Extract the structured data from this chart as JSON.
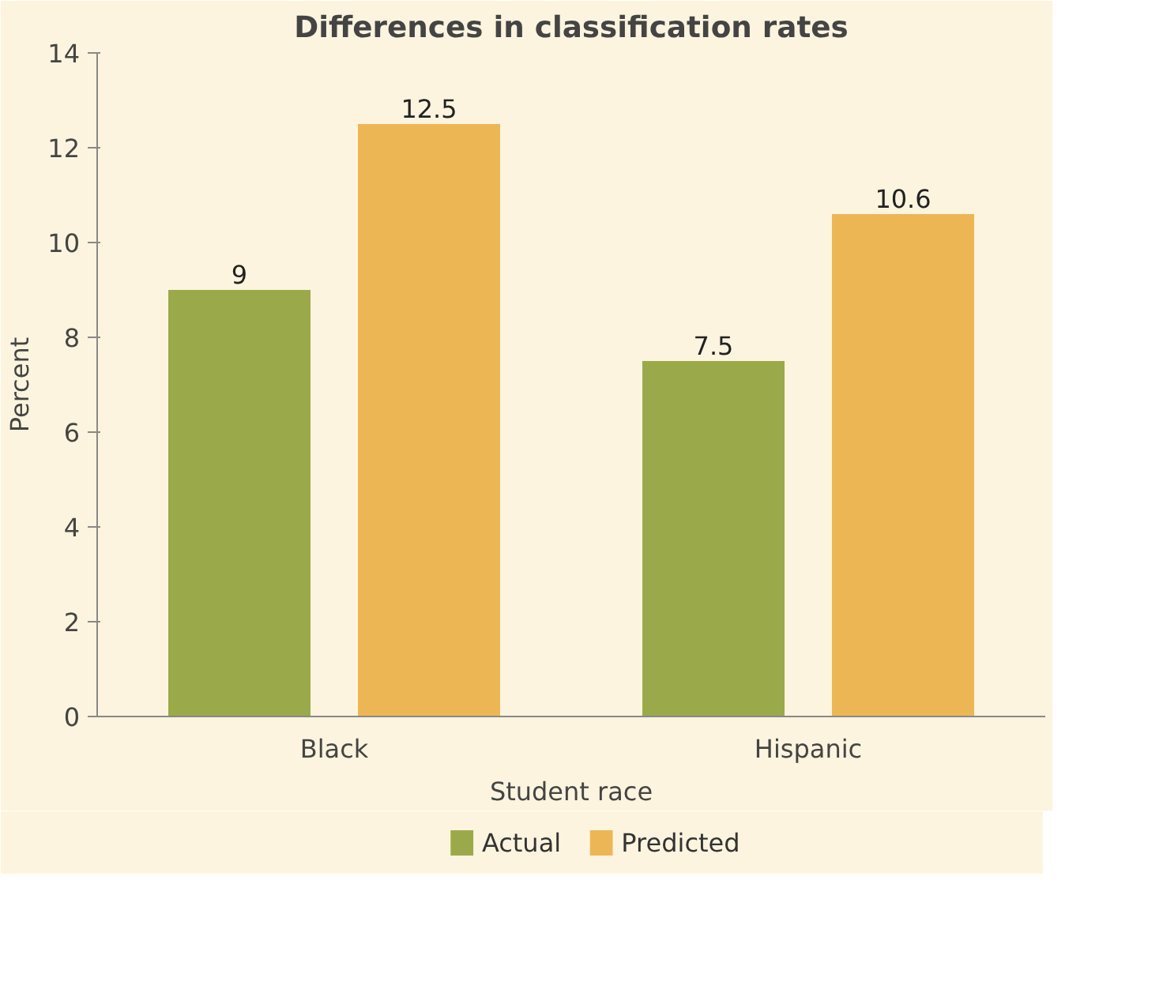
{
  "chart_data": {
    "type": "bar",
    "title": "Differences in classification rates",
    "xlabel": "Student race",
    "ylabel": "Percent",
    "categories": [
      "Black",
      "Hispanic"
    ],
    "series": [
      {
        "name": "Actual",
        "color": "#9aaa4a",
        "values": [
          9,
          7.5
        ]
      },
      {
        "name": "Predicted",
        "color": "#edb655",
        "values": [
          12.5,
          10.6
        ]
      }
    ],
    "ylim": [
      0,
      14
    ],
    "yticks": [
      0,
      2,
      4,
      6,
      8,
      10,
      12,
      14
    ],
    "grid": false,
    "legend": "bottom",
    "data_labels": true
  }
}
